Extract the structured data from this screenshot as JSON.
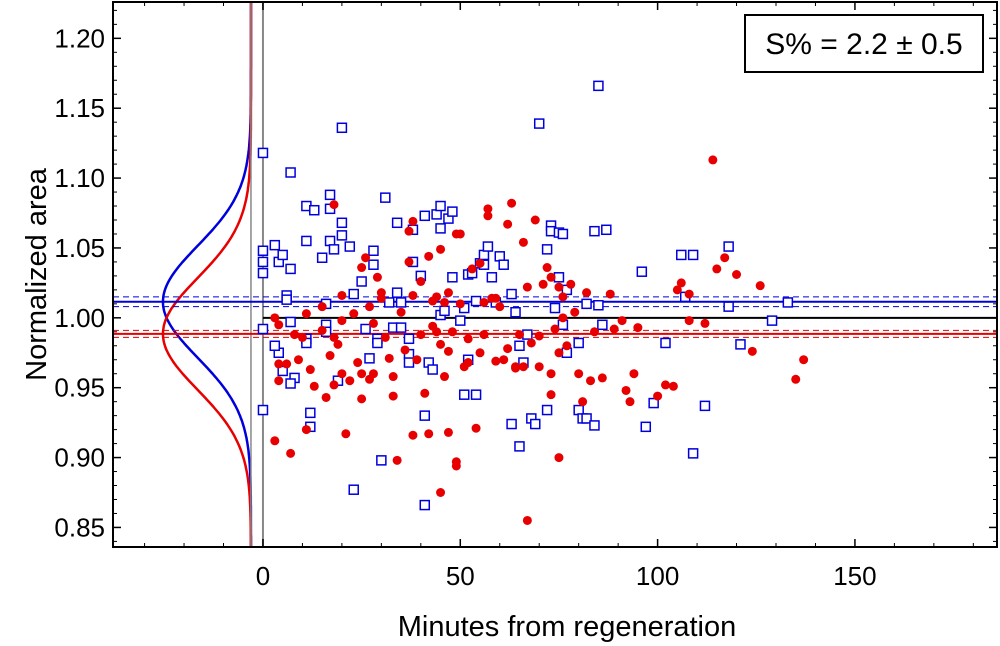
{
  "chart_data": {
    "type": "scatter",
    "title": "",
    "xlabel": "Minutes from regeneration",
    "ylabel": "Normalized area",
    "xlim": [
      -38,
      186
    ],
    "ylim": [
      0.836,
      1.226
    ],
    "x_ticks": [
      0,
      50,
      100,
      150
    ],
    "y_ticks": [
      0.85,
      0.9,
      0.95,
      1.0,
      1.05,
      1.1,
      1.15,
      1.2
    ],
    "x_tick_labels": [
      "0",
      "50",
      "100",
      "150"
    ],
    "y_tick_labels": [
      "0.85",
      "0.90",
      "0.95",
      "1.00",
      "1.05",
      "1.10",
      "1.15",
      "1.20"
    ],
    "annotation": "S% = 2.2 ± 0.5",
    "colors": {
      "red": "#e80000",
      "blue": "#0000dd",
      "reference": "#000000",
      "axis": "#000000",
      "zero_line": "#888888"
    },
    "reference_line": {
      "y": 1.0,
      "x_start": 0
    },
    "series": [
      {
        "name": "blue squares",
        "marker": "square",
        "color": "#0000dd",
        "mean": 1.0115,
        "ci": [
          1.008,
          1.015
        ],
        "sd": 0.04,
        "points": [
          [
            0,
            1.118
          ],
          [
            0,
            1.048
          ],
          [
            0,
            1.04
          ],
          [
            0,
            1.032
          ],
          [
            0,
            0.992
          ],
          [
            0,
            0.934
          ],
          [
            3,
            1.052
          ],
          [
            4,
            1.04
          ],
          [
            5,
            1.045
          ],
          [
            6,
            1.016
          ],
          [
            6,
            1.013
          ],
          [
            7,
            1.104
          ],
          [
            7,
            1.035
          ],
          [
            7,
            0.997
          ],
          [
            4,
            0.975
          ],
          [
            3,
            0.98
          ],
          [
            5,
            0.962
          ],
          [
            8,
            0.957
          ],
          [
            7,
            0.953
          ],
          [
            11,
            1.08
          ],
          [
            13,
            1.077
          ],
          [
            11,
            1.055
          ],
          [
            11,
            0.985
          ],
          [
            11,
            0.982
          ],
          [
            12,
            0.932
          ],
          [
            12,
            0.922
          ],
          [
            15,
            1.043
          ],
          [
            16,
            1.01
          ],
          [
            16,
            0.995
          ],
          [
            16,
            0.99
          ],
          [
            17,
            1.078
          ],
          [
            17,
            1.088
          ],
          [
            17,
            1.055
          ],
          [
            18,
            1.049
          ],
          [
            19,
            0.955
          ],
          [
            20,
            1.136
          ],
          [
            20,
            1.068
          ],
          [
            20,
            1.059
          ],
          [
            22,
            1.051
          ],
          [
            23,
            1.017
          ],
          [
            23,
            0.877
          ],
          [
            25,
            1.026
          ],
          [
            26,
            0.992
          ],
          [
            27,
            0.971
          ],
          [
            28,
            1.038
          ],
          [
            28,
            1.048
          ],
          [
            29,
            0.985
          ],
          [
            29,
            0.982
          ],
          [
            30,
            0.898
          ],
          [
            31,
            1.086
          ],
          [
            32,
            1.011
          ],
          [
            33,
            0.993
          ],
          [
            34,
            1.068
          ],
          [
            34,
            1.018
          ],
          [
            35,
            1.011
          ],
          [
            35,
            0.993
          ],
          [
            37,
            0.985
          ],
          [
            37,
            0.974
          ],
          [
            37,
            0.968
          ],
          [
            38,
            1.063
          ],
          [
            38,
            1.04
          ],
          [
            40,
            1.03
          ],
          [
            41,
            1.073
          ],
          [
            41,
            0.93
          ],
          [
            41,
            0.866
          ],
          [
            42,
            0.968
          ],
          [
            43,
            0.963
          ],
          [
            44,
            1.074
          ],
          [
            45,
            1.08
          ],
          [
            45,
            1.064
          ],
          [
            45,
            1.002
          ],
          [
            46,
            1.005
          ],
          [
            47,
            1.071
          ],
          [
            48,
            1.076
          ],
          [
            48,
            1.029
          ],
          [
            50,
            0.998
          ],
          [
            51,
            0.945
          ],
          [
            51,
            1.007
          ],
          [
            52,
            1.031
          ],
          [
            52,
            0.97
          ],
          [
            53,
            1.032
          ],
          [
            54,
            1.012
          ],
          [
            54,
            0.945
          ],
          [
            55,
            1.039
          ],
          [
            56,
            1.045
          ],
          [
            56,
            1.038
          ],
          [
            57,
            1.051
          ],
          [
            58,
            1.029
          ],
          [
            59,
            1.011
          ],
          [
            60,
            1.044
          ],
          [
            61,
            1.038
          ],
          [
            63,
            1.017
          ],
          [
            63,
            0.924
          ],
          [
            64,
            1.004
          ],
          [
            65,
            0.98
          ],
          [
            65,
            0.908
          ],
          [
            66,
            0.968
          ],
          [
            67,
            0.988
          ],
          [
            68,
            0.928
          ],
          [
            69,
            0.924
          ],
          [
            70,
            1.139
          ],
          [
            72,
            1.049
          ],
          [
            72,
            0.934
          ],
          [
            73,
            1.066
          ],
          [
            73,
            1.062
          ],
          [
            74,
            1.007
          ],
          [
            75,
            1.061
          ],
          [
            75,
            1.029
          ],
          [
            76,
            1.06
          ],
          [
            76,
            0.995
          ],
          [
            77,
            1.02
          ],
          [
            77,
            0.975
          ],
          [
            80,
            0.982
          ],
          [
            80,
            0.934
          ],
          [
            81,
            0.928
          ],
          [
            82,
            1.01
          ],
          [
            82,
            0.928
          ],
          [
            84,
            1.062
          ],
          [
            84,
            0.923
          ],
          [
            85,
            1.166
          ],
          [
            85,
            1.009
          ],
          [
            86,
            0.995
          ],
          [
            87,
            1.063
          ],
          [
            96,
            1.033
          ],
          [
            97,
            0.922
          ],
          [
            99,
            0.939
          ],
          [
            102,
            0.982
          ],
          [
            106,
            1.045
          ],
          [
            107,
            1.015
          ],
          [
            109,
            1.045
          ],
          [
            109,
            0.903
          ],
          [
            112,
            0.937
          ],
          [
            118,
            1.051
          ],
          [
            118,
            1.008
          ],
          [
            121,
            0.981
          ],
          [
            129,
            0.998
          ],
          [
            133,
            1.011
          ]
        ]
      },
      {
        "name": "red circles",
        "marker": "circle",
        "color": "#e80000",
        "mean": 0.9885,
        "ci": [
          0.986,
          0.991
        ],
        "sd": 0.04,
        "points": [
          [
            3,
            0.912
          ],
          [
            3,
            1.0
          ],
          [
            4,
            0.995
          ],
          [
            4,
            0.967
          ],
          [
            4,
            0.955
          ],
          [
            6,
            0.967
          ],
          [
            7,
            0.903
          ],
          [
            8,
            0.988
          ],
          [
            9,
            0.97
          ],
          [
            10,
            0.986
          ],
          [
            11,
            1.003
          ],
          [
            11,
            0.92
          ],
          [
            12,
            0.963
          ],
          [
            13,
            0.951
          ],
          [
            15,
            1.008
          ],
          [
            15,
            0.991
          ],
          [
            16,
            0.943
          ],
          [
            17,
            0.973
          ],
          [
            18,
            1.081
          ],
          [
            18,
            0.952
          ],
          [
            18,
            0.986
          ],
          [
            19,
            0.981
          ],
          [
            20,
            1.016
          ],
          [
            20,
            0.998
          ],
          [
            20,
            0.96
          ],
          [
            21,
            0.917
          ],
          [
            22,
            0.955
          ],
          [
            23,
            1.003
          ],
          [
            24,
            0.968
          ],
          [
            25,
            1.036
          ],
          [
            25,
            0.96
          ],
          [
            25,
            0.942
          ],
          [
            26,
            1.043
          ],
          [
            27,
            1.008
          ],
          [
            27,
            0.956
          ],
          [
            28,
            0.996
          ],
          [
            28,
            0.96
          ],
          [
            29,
            1.029
          ],
          [
            30,
            1.014
          ],
          [
            30,
            1.018
          ],
          [
            31,
            0.986
          ],
          [
            32,
            0.971
          ],
          [
            33,
            0.958
          ],
          [
            33,
            0.944
          ],
          [
            34,
            0.898
          ],
          [
            35,
            1.004
          ],
          [
            36,
            0.977
          ],
          [
            37,
            1.04
          ],
          [
            37,
            1.062
          ],
          [
            38,
            1.069
          ],
          [
            38,
            1.016
          ],
          [
            38,
            0.916
          ],
          [
            39,
            0.97
          ],
          [
            40,
            1.026
          ],
          [
            40,
            0.988
          ],
          [
            41,
            0.946
          ],
          [
            42,
            1.044
          ],
          [
            42,
            0.917
          ],
          [
            43,
            0.994
          ],
          [
            43,
            1.012
          ],
          [
            44,
            1.015
          ],
          [
            44,
            0.99
          ],
          [
            45,
            1.049
          ],
          [
            45,
            0.981
          ],
          [
            45,
            0.875
          ],
          [
            46,
            1.011
          ],
          [
            46,
            0.958
          ],
          [
            47,
            1.018
          ],
          [
            47,
            0.976
          ],
          [
            47,
            0.918
          ],
          [
            48,
            0.99
          ],
          [
            49,
            1.06
          ],
          [
            49,
            0.894
          ],
          [
            49,
            0.897
          ],
          [
            50,
            1.06
          ],
          [
            50,
            1.01
          ],
          [
            51,
            0.965
          ],
          [
            52,
            0.985
          ],
          [
            52,
            0.968
          ],
          [
            53,
            1.035
          ],
          [
            54,
            0.921
          ],
          [
            55,
            1.039
          ],
          [
            55,
            0.975
          ],
          [
            56,
            1.011
          ],
          [
            56,
            0.988
          ],
          [
            57,
            1.078
          ],
          [
            57,
            1.073
          ],
          [
            58,
            1.014
          ],
          [
            59,
            1.014
          ],
          [
            59,
            0.969
          ],
          [
            60,
            1.008
          ],
          [
            61,
            0.97
          ],
          [
            62,
            0.978
          ],
          [
            62,
            1.067
          ],
          [
            63,
            1.082
          ],
          [
            64,
            0.965
          ],
          [
            64,
            0.964
          ],
          [
            65,
            0.988
          ],
          [
            66,
            1.054
          ],
          [
            66,
            0.965
          ],
          [
            67,
            0.855
          ],
          [
            67,
            1.022
          ],
          [
            68,
            0.982
          ],
          [
            69,
            1.07
          ],
          [
            70,
            0.987
          ],
          [
            70,
            0.965
          ],
          [
            71,
            1.024
          ],
          [
            72,
            1.036
          ],
          [
            73,
            0.96
          ],
          [
            73,
            0.945
          ],
          [
            73,
            1.029
          ],
          [
            74,
            0.992
          ],
          [
            75,
            1.022
          ],
          [
            75,
            0.975
          ],
          [
            75,
            0.9
          ],
          [
            76,
            1.0
          ],
          [
            76,
            1.015
          ],
          [
            77,
            0.98
          ],
          [
            78,
            1.024
          ],
          [
            79,
            1.004
          ],
          [
            80,
            0.96
          ],
          [
            81,
            0.94
          ],
          [
            82,
            1.018
          ],
          [
            83,
            0.955
          ],
          [
            84,
            0.99
          ],
          [
            86,
            0.957
          ],
          [
            88,
            1.017
          ],
          [
            89,
            0.992
          ],
          [
            91,
            0.998
          ],
          [
            92,
            0.948
          ],
          [
            93,
            0.94
          ],
          [
            94,
            0.96
          ],
          [
            95,
            0.993
          ],
          [
            100,
            0.944
          ],
          [
            102,
            0.952
          ],
          [
            104,
            0.951
          ],
          [
            105,
            1.02
          ],
          [
            106,
            1.025
          ],
          [
            108,
            0.998
          ],
          [
            108,
            1.017
          ],
          [
            112,
            0.996
          ],
          [
            114,
            1.113
          ],
          [
            115,
            1.035
          ],
          [
            117,
            1.043
          ],
          [
            120,
            1.031
          ],
          [
            124,
            0.976
          ],
          [
            126,
            1.023
          ],
          [
            135,
            0.956
          ],
          [
            137,
            0.97
          ]
        ]
      }
    ]
  }
}
